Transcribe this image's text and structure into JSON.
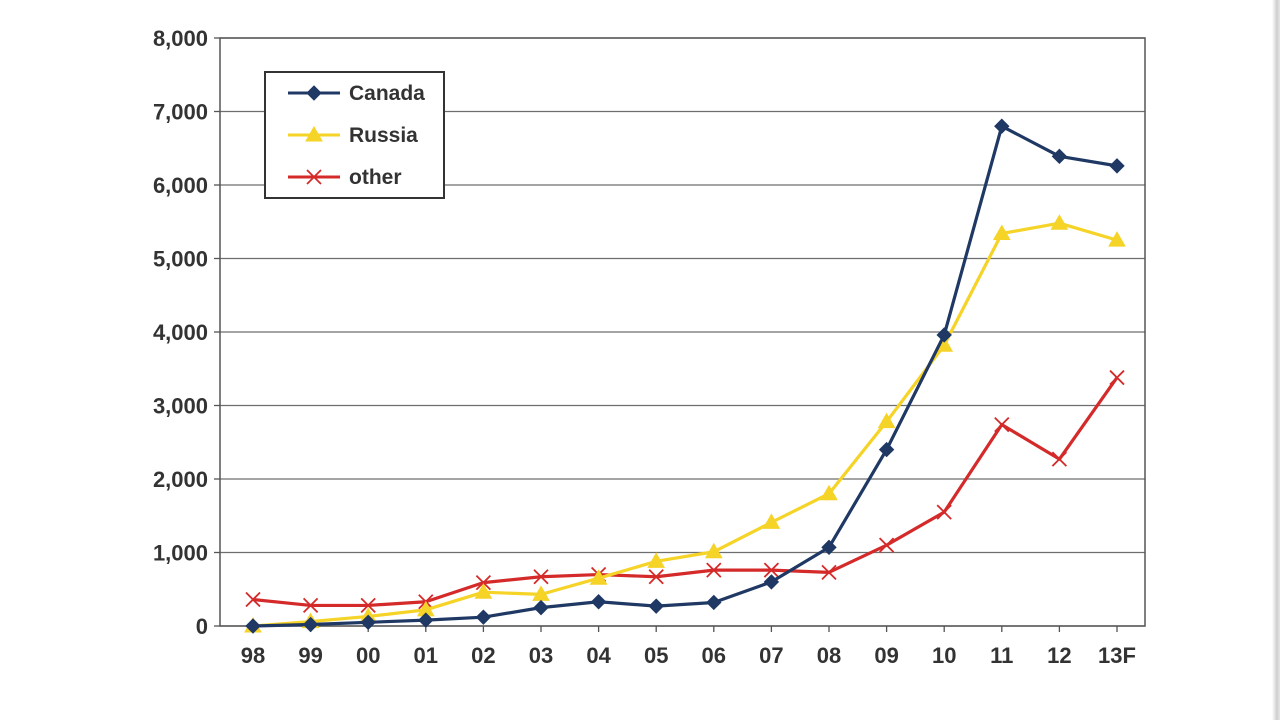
{
  "chart_data": {
    "type": "line",
    "title": "",
    "xlabel": "",
    "ylabel": "",
    "categories": [
      "98",
      "99",
      "00",
      "01",
      "02",
      "03",
      "04",
      "05",
      "06",
      "07",
      "08",
      "09",
      "10",
      "11",
      "12",
      "13F"
    ],
    "ylim": [
      0,
      8000
    ],
    "yticks": [
      0,
      1000,
      2000,
      3000,
      4000,
      5000,
      6000,
      7000,
      8000
    ],
    "ytick_labels": [
      "0",
      "1,000",
      "2,000",
      "3,000",
      "4,000",
      "5,000",
      "6,000",
      "7,000",
      "8,000"
    ],
    "grid": true,
    "legend_position": "top-left",
    "series": [
      {
        "name": "Canada",
        "color": "#1f3864",
        "marker": "diamond",
        "values": [
          0,
          20,
          50,
          80,
          120,
          250,
          330,
          270,
          320,
          600,
          1070,
          2400,
          3960,
          6800,
          6390,
          6260
        ]
      },
      {
        "name": "Russia",
        "color": "#f5d327",
        "marker": "triangle",
        "values": [
          0,
          60,
          130,
          220,
          460,
          430,
          650,
          880,
          1010,
          1410,
          1800,
          2780,
          3820,
          5340,
          5480,
          5250
        ]
      },
      {
        "name": "other",
        "color": "#d42a2a",
        "marker": "x",
        "values": [
          360,
          280,
          280,
          330,
          590,
          670,
          700,
          670,
          760,
          760,
          730,
          1100,
          1550,
          2740,
          2270,
          3380
        ]
      }
    ]
  }
}
